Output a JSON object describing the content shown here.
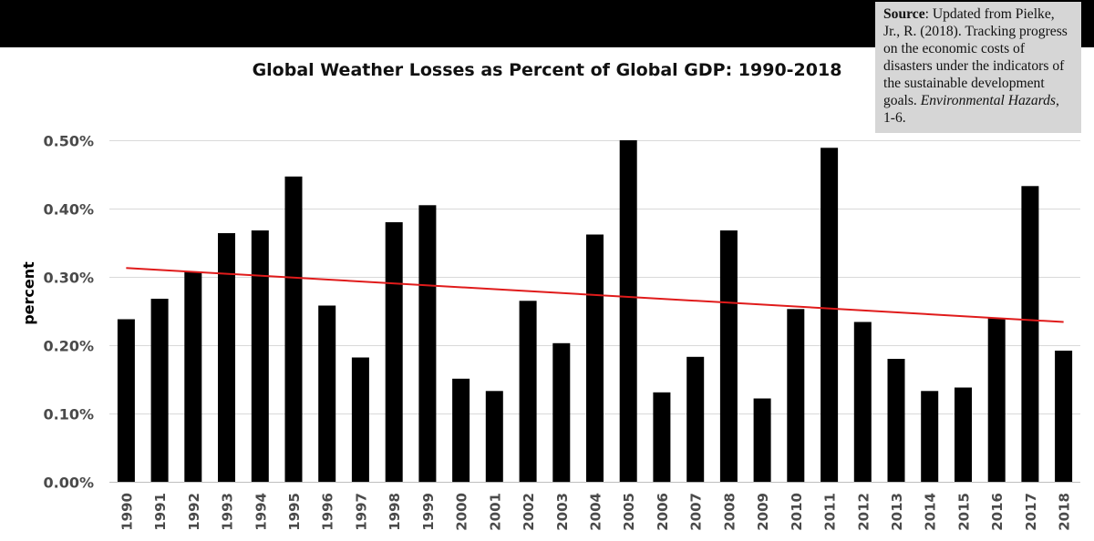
{
  "source_note": {
    "label": "Source",
    "text": ": Updated from Pielke, Jr., R. (2018). Tracking progress on the economic costs of disasters under the indicators of the sustainable development goals. ",
    "journal": "Environmental Hazards",
    "pages": ", 1-6."
  },
  "colors": {
    "bars": "#000000",
    "trend": "#e01b1b",
    "grid": "#d9d9d9",
    "header_bar": "#000000",
    "note_bg": "#d6d6d6"
  },
  "chart_data": {
    "type": "bar",
    "title": "Global Weather Losses as Percent of Global GDP: 1990-2018",
    "xlabel": "",
    "ylabel": "percent",
    "ylim": [
      0,
      0.5
    ],
    "yticks": [
      0,
      0.1,
      0.2,
      0.3,
      0.4,
      0.5
    ],
    "ytick_labels": [
      "0.00%",
      "0.10%",
      "0.20%",
      "0.30%",
      "0.40%",
      "0.50%"
    ],
    "grid": true,
    "categories": [
      "1990",
      "1991",
      "1992",
      "1993",
      "1994",
      "1995",
      "1996",
      "1997",
      "1998",
      "1999",
      "2000",
      "2001",
      "2002",
      "2003",
      "2004",
      "2005",
      "2006",
      "2007",
      "2008",
      "2009",
      "2010",
      "2011",
      "2012",
      "2013",
      "2014",
      "2015",
      "2016",
      "2017",
      "2018"
    ],
    "values": [
      0.238,
      0.268,
      0.308,
      0.364,
      0.368,
      0.447,
      0.258,
      0.182,
      0.38,
      0.405,
      0.151,
      0.133,
      0.265,
      0.203,
      0.362,
      0.5,
      0.131,
      0.183,
      0.368,
      0.122,
      0.253,
      0.489,
      0.234,
      0.18,
      0.133,
      0.138,
      0.24,
      0.433,
      0.192
    ],
    "trendline": {
      "name": "linear trend",
      "start": 0.313,
      "end": 0.234
    }
  }
}
